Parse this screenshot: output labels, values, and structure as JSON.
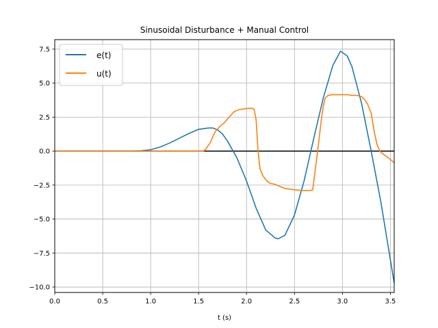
{
  "chart_data": {
    "type": "line",
    "title": "Sinusoidal Disturbance + Manual Control",
    "xlabel": "t (s)",
    "ylabel": "",
    "xlim": [
      0,
      3.54
    ],
    "ylim": [
      -10.4,
      8.2
    ],
    "xticks": [
      0.0,
      0.5,
      1.0,
      1.5,
      2.0,
      2.5,
      3.0,
      3.5
    ],
    "xtick_labels": [
      "0.0",
      "0.5",
      "1.0",
      "1.5",
      "2.0",
      "2.5",
      "3.0",
      "3.5"
    ],
    "yticks": [
      7.5,
      5.0,
      2.5,
      0.0,
      -2.5,
      -5.0,
      -7.5,
      -10.0
    ],
    "ytick_labels": [
      "7.5",
      "5.0",
      "2.5",
      "0.0",
      "−2.5",
      "−5.0",
      "−7.5",
      "−10.0"
    ],
    "grid": true,
    "legend_position": "top-left",
    "reference_line": {
      "y": 0,
      "color": "#000000"
    },
    "series": [
      {
        "name": "e(t)",
        "color": "#1f77b4",
        "x": [
          0,
          0.5,
          0.8,
          0.9,
          1.0,
          1.1,
          1.2,
          1.3,
          1.4,
          1.5,
          1.6,
          1.65,
          1.7,
          1.75,
          1.8,
          1.9,
          2.0,
          2.1,
          2.2,
          2.3,
          2.33,
          2.4,
          2.5,
          2.6,
          2.7,
          2.8,
          2.9,
          2.98,
          3.05,
          3.1,
          3.2,
          3.3,
          3.4,
          3.5,
          3.54
        ],
        "y": [
          0,
          0,
          0,
          0.02,
          0.1,
          0.3,
          0.6,
          0.95,
          1.3,
          1.6,
          1.7,
          1.7,
          1.55,
          1.25,
          0.75,
          -0.5,
          -2.2,
          -4.2,
          -5.8,
          -6.4,
          -6.45,
          -6.2,
          -4.7,
          -2.2,
          0.9,
          3.9,
          6.3,
          7.35,
          7.0,
          6.2,
          3.5,
          0.0,
          -3.7,
          -8.0,
          -9.7
        ]
      },
      {
        "name": "u(t)",
        "color": "#ff7f0e",
        "x": [
          0,
          1.55,
          1.57,
          1.62,
          1.67,
          1.72,
          1.77,
          1.82,
          1.87,
          1.92,
          1.97,
          2.02,
          2.06,
          2.08,
          2.1,
          2.12,
          2.14,
          2.17,
          2.2,
          2.24,
          2.3,
          2.35,
          2.4,
          2.45,
          2.5,
          2.6,
          2.66,
          2.69,
          2.72,
          2.75,
          2.78,
          2.8,
          2.82,
          2.85,
          2.9,
          3.0,
          3.05,
          3.1,
          3.15,
          3.2,
          3.23,
          3.26,
          3.3,
          3.33,
          3.36,
          3.39,
          3.43,
          3.48,
          3.54
        ],
        "y": [
          0,
          0,
          0.1,
          0.6,
          1.4,
          1.8,
          2.1,
          2.5,
          2.9,
          3.05,
          3.1,
          3.15,
          3.15,
          3.05,
          2.3,
          0.0,
          -1.3,
          -1.8,
          -2.1,
          -2.35,
          -2.45,
          -2.6,
          -2.75,
          -2.8,
          -2.85,
          -2.9,
          -2.9,
          -2.85,
          -1.2,
          0.5,
          2.3,
          3.3,
          3.9,
          4.1,
          4.15,
          4.15,
          4.15,
          4.1,
          4.1,
          4.0,
          3.8,
          3.5,
          2.8,
          1.5,
          0.5,
          0.0,
          -0.25,
          -0.5,
          -0.85
        ]
      }
    ]
  }
}
